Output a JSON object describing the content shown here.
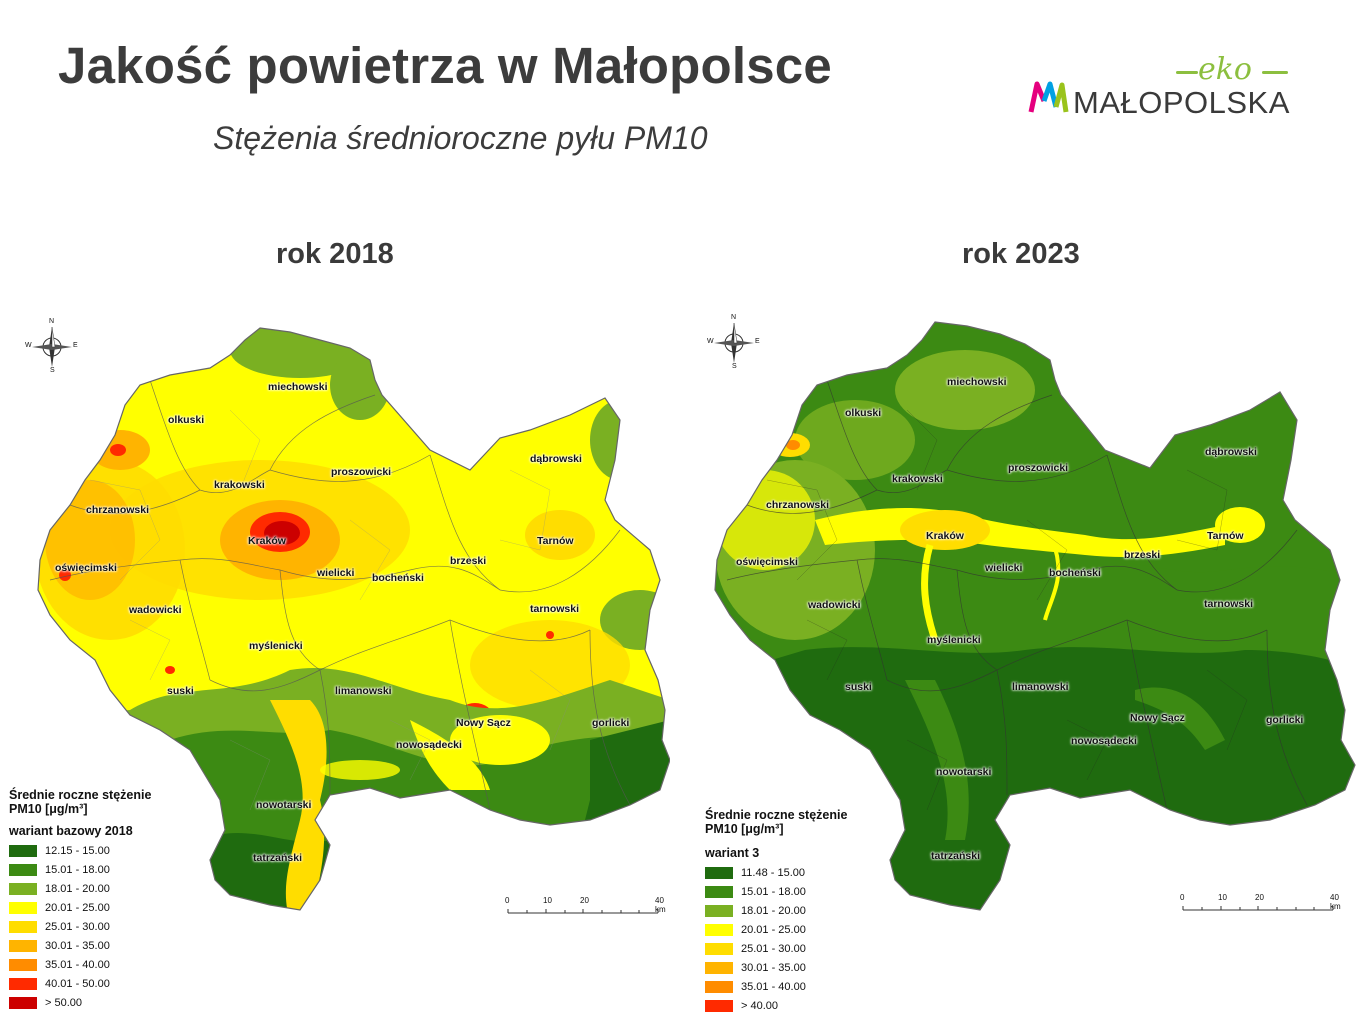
{
  "header": {
    "title": "Jakość powietrza w Małopolsce",
    "subtitle": "Stężenia średnioroczne pyłu PM10"
  },
  "logo": {
    "eko": "eko",
    "word": "MAŁOPOLSKA"
  },
  "maps": {
    "left": {
      "year_label": "rok 2018",
      "legend_title": "Średnie roczne stężenie PM10 [μg/m³]",
      "variant": "wariant bazowy 2018",
      "classes": [
        {
          "label": "12.15 - 15.00",
          "color": "#1f6b0f"
        },
        {
          "label": "15.01 - 18.00",
          "color": "#3c8a13"
        },
        {
          "label": "18.01 - 20.00",
          "color": "#7ab022"
        },
        {
          "label": "20.01 - 25.00",
          "color": "#ffff00"
        },
        {
          "label": "25.01 - 30.00",
          "color": "#ffdd00"
        },
        {
          "label": "30.01 - 35.00",
          "color": "#ffb400"
        },
        {
          "label": "35.01 - 40.00",
          "color": "#ff8c00"
        },
        {
          "label": "40.01 - 50.00",
          "color": "#ff2a00"
        },
        {
          "label": "> 50.00",
          "color": "#cc0000"
        }
      ]
    },
    "right": {
      "year_label": "rok 2023",
      "legend_title": "Średnie roczne stężenie PM10 [μg/m³]",
      "variant": "wariant 3",
      "classes": [
        {
          "label": "11.48 - 15.00",
          "color": "#1f6b0f"
        },
        {
          "label": "15.01 - 18.00",
          "color": "#3c8a13"
        },
        {
          "label": "18.01 - 20.00",
          "color": "#7ab022"
        },
        {
          "label": "20.01 - 25.00",
          "color": "#ffff00"
        },
        {
          "label": "25.01 - 30.00",
          "color": "#ffdd00"
        },
        {
          "label": "30.01 - 35.00",
          "color": "#ffb400"
        },
        {
          "label": "35.01 - 40.00",
          "color": "#ff8c00"
        },
        {
          "label": "> 40.00",
          "color": "#ff2a00"
        }
      ]
    },
    "scale_labels": [
      "0",
      "10",
      "20",
      "40 km"
    ],
    "compass": {
      "n": "N",
      "e": "E",
      "s": "S",
      "w": "W"
    },
    "districts": {
      "miechowski": "miechowski",
      "olkuski": "olkuski",
      "krakowski": "krakowski",
      "proszowicki": "proszowicki",
      "dabrowski": "dąbrowski",
      "chrzanowski": "chrzanowski",
      "krakow": "Kraków",
      "tarnow": "Tarnów",
      "oswiecimski": "oświęcimski",
      "wielicki": "wielicki",
      "bochenski": "bocheński",
      "brzeski": "brzeski",
      "wadowicki": "wadowicki",
      "tarnowski": "tarnowski",
      "myslenicki": "myślenicki",
      "limanowski": "limanowski",
      "suski": "suski",
      "nowy_sacz": "Nowy Sącz",
      "gorlicki": "gorlicki",
      "nowosadecki": "nowosądecki",
      "nowotarski": "nowotarski",
      "tatrzanski": "tatrzański"
    }
  }
}
